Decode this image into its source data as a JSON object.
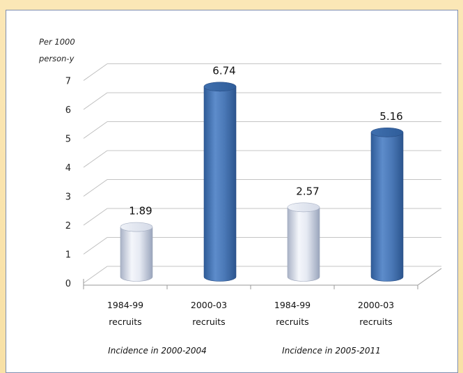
{
  "chart_data": {
    "type": "bar",
    "ylabel": [
      "Per 1000",
      "person-y"
    ],
    "ylim": [
      0,
      7
    ],
    "yticks": [
      "0",
      "1",
      "2",
      "3",
      "4",
      "5",
      "6",
      "7"
    ],
    "categories": [
      [
        "1984-99",
        "recruits"
      ],
      [
        "2000-03",
        "recruits"
      ],
      [
        "1984-99",
        "recruits"
      ],
      [
        "2000-03",
        "recruits"
      ]
    ],
    "values": [
      1.89,
      6.74,
      2.57,
      5.16
    ],
    "value_labels": [
      "1.89",
      "6.74",
      "2.57",
      "5.16"
    ],
    "groups": [
      "Incidence in 2000-2004",
      "Incidence in 2005-2011"
    ],
    "grid": true,
    "style": "3d-cylinder",
    "colors": [
      "#d9e0ee",
      "#4a78b6",
      "#d9e0ee",
      "#4a78b6"
    ]
  }
}
